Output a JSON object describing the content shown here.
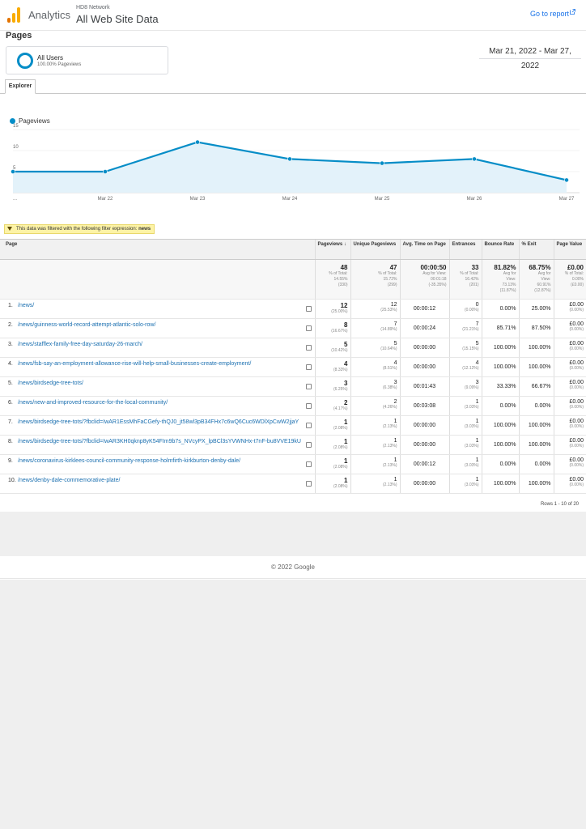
{
  "header": {
    "app_name": "Analytics",
    "network": "HD8 Network",
    "property": "All Web Site Data",
    "goto_report": "Go to report",
    "icons": [
      "analytics-logo-icon",
      "external-link-icon"
    ],
    "colors": {
      "brand_orange": "#f9ab00",
      "brand_dark_orange": "#e37400",
      "link_blue": "#1a73e8"
    }
  },
  "page": {
    "title": "Pages"
  },
  "segment": {
    "name": "All Users",
    "sub": "100.00% Pageviews"
  },
  "date_range": "Mar 21, 2022 - Mar 27, 2022",
  "tabs": [
    {
      "label": "Explorer"
    }
  ],
  "chart_data": {
    "type": "area",
    "series": [
      {
        "name": "Pageviews",
        "values": [
          5,
          5,
          12,
          8,
          7,
          8,
          3
        ]
      }
    ],
    "x_ticks": [
      "...",
      "Mar 22",
      "Mar 23",
      "Mar 24",
      "Mar 25",
      "Mar 26",
      "Mar 27"
    ],
    "y_ticks": [
      "15",
      "10",
      "5"
    ],
    "ylim": [
      0,
      15
    ],
    "color": "#058dc7",
    "fill": "#e3f2fa",
    "grid": true
  },
  "filter": {
    "text": "This data was filtered with the following filter expression:",
    "expression": "news"
  },
  "table": {
    "headers": [
      "Page",
      "Pageviews",
      "Unique Pageviews",
      "Avg. Time on Page",
      "Entrances",
      "Bounce Rate",
      "% Exit",
      "Page Value"
    ],
    "sort_arrow": "↓",
    "totals": {
      "pageviews": {
        "value": "48",
        "sub1": "% of Total:",
        "sub2": "14.55%",
        "sub3": "(330)"
      },
      "unique": {
        "value": "47",
        "sub1": "% of Total:",
        "sub2": "15.72%",
        "sub3": "(299)"
      },
      "time": {
        "value": "00:00:50",
        "sub1": "Avg for View:",
        "sub2": "00:01:18",
        "sub3": "(-35.35%)"
      },
      "entrances": {
        "value": "33",
        "sub1": "% of Total:",
        "sub2": "16.42%",
        "sub3": "(201)"
      },
      "bounce": {
        "value": "81.82%",
        "sub1": "Avg for",
        "sub2": "View:",
        "sub3": "73.13%",
        "sub4": "(11.87%)"
      },
      "exit": {
        "value": "68.75%",
        "sub1": "Avg for",
        "sub2": "View:",
        "sub3": "60.91%",
        "sub4": "(12.87%)"
      },
      "value": {
        "value": "£0.00",
        "sub1": "% of Total:",
        "sub2": "0.00%",
        "sub3": "(£0.00)"
      }
    },
    "rows": [
      {
        "n": "1.",
        "page": "/news/",
        "pv": "12",
        "pv_pct": "(25.00%)",
        "upv": "12",
        "upv_pct": "(25.53%)",
        "time": "00:00:12",
        "ent": "0",
        "ent_pct": "(0.00%)",
        "bounce": "0.00%",
        "exit": "25.00%",
        "value": "£0.00",
        "value_pct": "(0.00%)"
      },
      {
        "n": "2.",
        "page": "/news/guinness-world-record-attempt-atlantic-solo-row/",
        "pv": "8",
        "pv_pct": "(16.67%)",
        "upv": "7",
        "upv_pct": "(14.89%)",
        "time": "00:00:24",
        "ent": "7",
        "ent_pct": "(21.21%)",
        "bounce": "85.71%",
        "exit": "87.50%",
        "value": "£0.00",
        "value_pct": "(0.00%)"
      },
      {
        "n": "3.",
        "page": "/news/stafflex-family-free-day-saturday-26-march/",
        "pv": "5",
        "pv_pct": "(10.42%)",
        "upv": "5",
        "upv_pct": "(10.64%)",
        "time": "00:00:00",
        "ent": "5",
        "ent_pct": "(15.15%)",
        "bounce": "100.00%",
        "exit": "100.00%",
        "value": "£0.00",
        "value_pct": "(0.00%)"
      },
      {
        "n": "4.",
        "page": "/news/fsb-say-an-employment-allowance-rise-will-help-small-businesses-create-employment/",
        "pv": "4",
        "pv_pct": "(8.33%)",
        "upv": "4",
        "upv_pct": "(8.51%)",
        "time": "00:00:00",
        "ent": "4",
        "ent_pct": "(12.12%)",
        "bounce": "100.00%",
        "exit": "100.00%",
        "value": "£0.00",
        "value_pct": "(0.00%)"
      },
      {
        "n": "5.",
        "page": "/news/birdsedge-tree-tots/",
        "pv": "3",
        "pv_pct": "(6.25%)",
        "upv": "3",
        "upv_pct": "(6.38%)",
        "time": "00:01:43",
        "ent": "3",
        "ent_pct": "(9.09%)",
        "bounce": "33.33%",
        "exit": "66.67%",
        "value": "£0.00",
        "value_pct": "(0.00%)"
      },
      {
        "n": "6.",
        "page": "/news/new-and-improved-resource-for-the-local-community/",
        "pv": "2",
        "pv_pct": "(4.17%)",
        "upv": "2",
        "upv_pct": "(4.26%)",
        "time": "00:03:08",
        "ent": "1",
        "ent_pct": "(3.03%)",
        "bounce": "0.00%",
        "exit": "0.00%",
        "value": "£0.00",
        "value_pct": "(0.00%)"
      },
      {
        "n": "7.",
        "page": "/news/birdsedge-tree-tots/?fbclid=IwAR1EssMhFaCGefy-thQJ0_jt58wl3pB34FHx7c6wQ6Cuc6WDlXpCwW2jjaY",
        "pv": "1",
        "pv_pct": "(2.08%)",
        "upv": "1",
        "upv_pct": "(2.13%)",
        "time": "00:00:00",
        "ent": "1",
        "ent_pct": "(3.03%)",
        "bounce": "100.00%",
        "exit": "100.00%",
        "value": "£0.00",
        "value_pct": "(0.00%)"
      },
      {
        "n": "8.",
        "page": "/news/birdsedge-tree-tots/?fbclid=IwAR3KH0qknp8yK54FIm9b7s_NVcyPX_lpBCl3sYVWNHx-t7nF-bu8VVE19kU",
        "pv": "1",
        "pv_pct": "(2.08%)",
        "upv": "1",
        "upv_pct": "(2.13%)",
        "time": "00:00:00",
        "ent": "1",
        "ent_pct": "(3.03%)",
        "bounce": "100.00%",
        "exit": "100.00%",
        "value": "£0.00",
        "value_pct": "(0.00%)"
      },
      {
        "n": "9.",
        "page": "/news/coronavirus-kirklees-council-community-response-holmfirth-kirkburton-denby-dale/",
        "pv": "1",
        "pv_pct": "(2.08%)",
        "upv": "1",
        "upv_pct": "(2.13%)",
        "time": "00:00:12",
        "ent": "1",
        "ent_pct": "(3.03%)",
        "bounce": "0.00%",
        "exit": "0.00%",
        "value": "£0.00",
        "value_pct": "(0.00%)"
      },
      {
        "n": "10.",
        "page": "/news/denby-dale-commemorative-plate/",
        "pv": "1",
        "pv_pct": "(2.08%)",
        "upv": "1",
        "upv_pct": "(2.13%)",
        "time": "00:00:00",
        "ent": "1",
        "ent_pct": "(3.03%)",
        "bounce": "100.00%",
        "exit": "100.00%",
        "value": "£0.00",
        "value_pct": "(0.00%)"
      }
    ],
    "rows_info": "Rows 1 - 10 of 20"
  },
  "footer": {
    "copyright": "© 2022 Google"
  }
}
